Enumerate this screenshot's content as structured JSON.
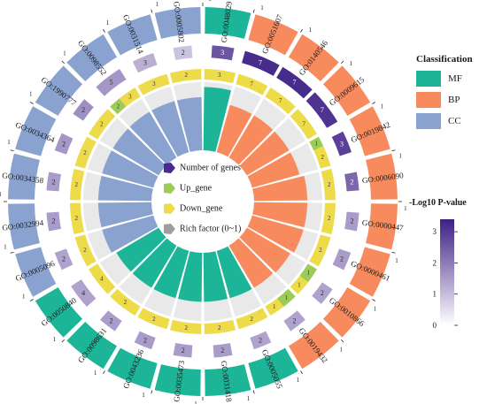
{
  "chart_data": {
    "type": "circular-go-enrichment",
    "terms": [
      {
        "id": "GO:0048029",
        "class": "MF",
        "genes": 3,
        "up": 0,
        "down": 3,
        "rich": 0.93,
        "p": 2.6
      },
      {
        "id": "GO:0051607",
        "class": "BP",
        "genes": 7,
        "up": 0,
        "down": 7,
        "rich": 0.72,
        "p": 3.2
      },
      {
        "id": "GO:0140546",
        "class": "BP",
        "genes": 7,
        "up": 0,
        "down": 7,
        "rich": 0.72,
        "p": 3.2
      },
      {
        "id": "GO:0009615",
        "class": "BP",
        "genes": 7,
        "up": 0,
        "down": 7,
        "rich": 0.72,
        "p": 3.1
      },
      {
        "id": "GO:0019842",
        "class": "BP",
        "genes": 3,
        "up": 1,
        "down": 2,
        "rich": 0.72,
        "p": 2.9
      },
      {
        "id": "GO:0006090",
        "class": "BP",
        "genes": 2,
        "up": 0,
        "down": 2,
        "rich": 0.78,
        "p": 2.3
      },
      {
        "id": "GO:0000447",
        "class": "BP",
        "genes": 2,
        "up": 0,
        "down": 2,
        "rich": 0.78,
        "p": 1.5
      },
      {
        "id": "GO:0000461",
        "class": "BP",
        "genes": 2,
        "up": 0,
        "down": 2,
        "rich": 0.78,
        "p": 1.5
      },
      {
        "id": "GO:0010866",
        "class": "BP",
        "genes": 2,
        "up": 1,
        "down": 1,
        "rich": 0.74,
        "p": 1.4
      },
      {
        "id": "GO:0019432",
        "class": "BP",
        "genes": 2,
        "up": 1,
        "down": 1,
        "rich": 0.72,
        "p": 1.4
      },
      {
        "id": "GO:0005055",
        "class": "MF",
        "genes": 2,
        "up": 0,
        "down": 2,
        "rich": 0.72,
        "p": 1.4
      },
      {
        "id": "GO:0031418",
        "class": "MF",
        "genes": 2,
        "up": 0,
        "down": 2,
        "rich": 0.72,
        "p": 1.5
      },
      {
        "id": "GO:0035473",
        "class": "MF",
        "genes": 2,
        "up": 0,
        "down": 2,
        "rich": 0.72,
        "p": 1.5
      },
      {
        "id": "GO:0043236",
        "class": "MF",
        "genes": 2,
        "up": 0,
        "down": 2,
        "rich": 0.72,
        "p": 1.5
      },
      {
        "id": "GO:0098631",
        "class": "MF",
        "genes": 2,
        "up": 0,
        "down": 2,
        "rich": 0.72,
        "p": 1.5
      },
      {
        "id": "GO:0050840",
        "class": "MF",
        "genes": 4,
        "up": 0,
        "down": 4,
        "rich": 0.72,
        "p": 1.4
      },
      {
        "id": "GO:0005096",
        "class": "CC",
        "genes": 2,
        "up": 0,
        "down": 2,
        "rich": 0.78,
        "p": 1.4
      },
      {
        "id": "GO:0032994",
        "class": "CC",
        "genes": 2,
        "up": 0,
        "down": 2,
        "rich": 0.78,
        "p": 1.5
      },
      {
        "id": "GO:0034358",
        "class": "CC",
        "genes": 2,
        "up": 0,
        "down": 2,
        "rich": 0.78,
        "p": 1.5
      },
      {
        "id": "GO:0034364",
        "class": "CC",
        "genes": 2,
        "up": 0,
        "down": 2,
        "rich": 0.78,
        "p": 1.6
      },
      {
        "id": "GO:1990777",
        "class": "CC",
        "genes": 2,
        "up": 0,
        "down": 2,
        "rich": 0.78,
        "p": 1.7
      },
      {
        "id": "GO:0098552",
        "class": "CC",
        "genes": 5,
        "up": 2,
        "down": 3,
        "rich": 0.78,
        "p": 1.6
      },
      {
        "id": "GO:0031514",
        "class": "CC",
        "genes": 3,
        "up": 0,
        "down": 3,
        "rich": 0.78,
        "p": 1.2
      },
      {
        "id": "GO:0005802",
        "class": "CC",
        "genes": 2,
        "up": 0,
        "down": 2,
        "rich": 0.78,
        "p": 0.9
      }
    ],
    "classification": {
      "title": "Classification",
      "items": [
        {
          "key": "MF",
          "label": "MF",
          "color": "#1cb597"
        },
        {
          "key": "BP",
          "label": "BP",
          "color": "#f78b5e"
        },
        {
          "key": "CC",
          "label": "CC",
          "color": "#8aa2cf"
        }
      ]
    },
    "colorbar": {
      "title": "-Log10 P-value",
      "ticks": [
        3,
        2,
        1,
        0
      ],
      "domain": [
        0,
        3.4
      ],
      "low_color": "#ffffff",
      "high_color": "#3d1f86"
    },
    "center_legend": [
      {
        "label": "Number of genes",
        "color": "#4b2a8f"
      },
      {
        "label": "Up_gene",
        "color": "#9ccc55"
      },
      {
        "label": "Down_gene",
        "color": "#ecdc4e"
      },
      {
        "label": "Rich factor (0~1)",
        "color": "#9e9e9e"
      }
    ],
    "ring_colors": {
      "up": "#9ccc55",
      "down": "#eedb4a",
      "rich_fill_ref": "#e9e9e9"
    },
    "tick_marker": "1"
  }
}
